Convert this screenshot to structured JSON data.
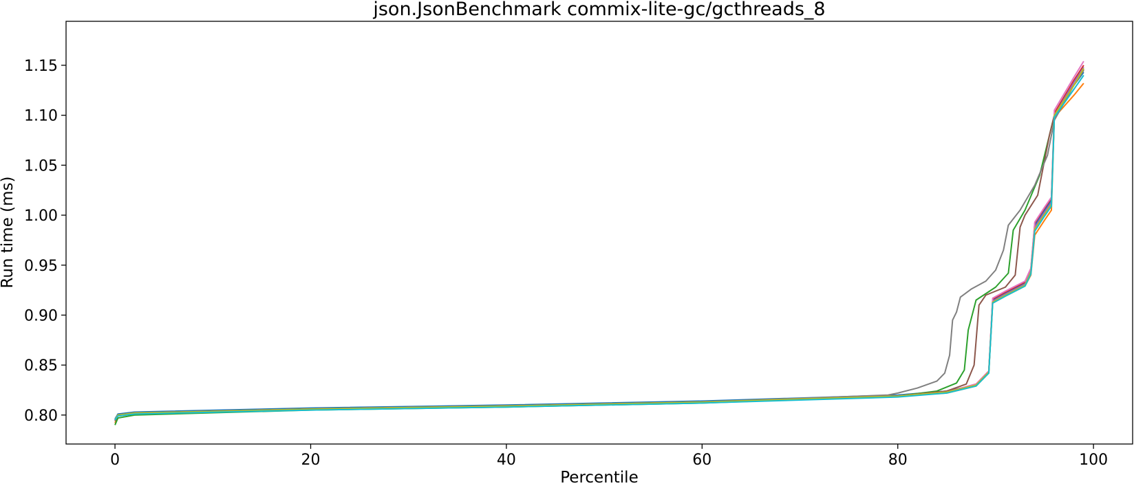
{
  "chart_data": {
    "type": "line",
    "title": "json.JsonBenchmark commix-lite-gc/gcthreads_8",
    "xlabel": "Percentile",
    "ylabel": "Run time (ms)",
    "xlim": [
      -5,
      104
    ],
    "ylim": [
      0.771,
      1.194
    ],
    "xticks": [
      0,
      20,
      40,
      60,
      80,
      100
    ],
    "xtick_labels": [
      "0",
      "20",
      "40",
      "60",
      "80",
      "100"
    ],
    "yticks": [
      0.8,
      0.85,
      0.9,
      0.95,
      1.0,
      1.05,
      1.1,
      1.15
    ],
    "ytick_labels": [
      "0.80",
      "0.85",
      "0.90",
      "0.95",
      "1.00",
      "1.05",
      "1.10",
      "1.15"
    ],
    "grid": false,
    "legend": "none",
    "series": [
      {
        "color": "#1f77b4",
        "points": [
          [
            0,
            0.796
          ],
          [
            0.3,
            0.801
          ],
          [
            2,
            0.803
          ],
          [
            20,
            0.807
          ],
          [
            40,
            0.81
          ],
          [
            60,
            0.814
          ],
          [
            80,
            0.82
          ],
          [
            85,
            0.824
          ],
          [
            88,
            0.83
          ],
          [
            89.3,
            0.843
          ],
          [
            89.7,
            0.915
          ],
          [
            91,
            0.922
          ],
          [
            93,
            0.932
          ],
          [
            93.6,
            0.945
          ],
          [
            94,
            0.99
          ],
          [
            95,
            1.005
          ],
          [
            95.7,
            1.015
          ],
          [
            96,
            1.1
          ],
          [
            98,
            1.13
          ],
          [
            99,
            1.143
          ]
        ]
      },
      {
        "color": "#ff7f0e",
        "points": [
          [
            0,
            0.792
          ],
          [
            0.3,
            0.799
          ],
          [
            2,
            0.801
          ],
          [
            20,
            0.806
          ],
          [
            40,
            0.809
          ],
          [
            60,
            0.813
          ],
          [
            80,
            0.819
          ],
          [
            85,
            0.822
          ],
          [
            88,
            0.829
          ],
          [
            89.3,
            0.842
          ],
          [
            89.7,
            0.912
          ],
          [
            91,
            0.919
          ],
          [
            93,
            0.929
          ],
          [
            93.6,
            0.94
          ],
          [
            94,
            0.98
          ],
          [
            95,
            0.995
          ],
          [
            95.7,
            1.005
          ],
          [
            96,
            1.098
          ],
          [
            98,
            1.12
          ],
          [
            99,
            1.132
          ]
        ]
      },
      {
        "color": "#2ca02c",
        "points": [
          [
            0,
            0.79
          ],
          [
            0.3,
            0.797
          ],
          [
            2,
            0.8
          ],
          [
            20,
            0.805
          ],
          [
            40,
            0.808
          ],
          [
            60,
            0.812
          ],
          [
            80,
            0.819
          ],
          [
            84,
            0.824
          ],
          [
            86,
            0.832
          ],
          [
            86.8,
            0.845
          ],
          [
            87.2,
            0.885
          ],
          [
            88,
            0.915
          ],
          [
            90,
            0.928
          ],
          [
            91.3,
            0.942
          ],
          [
            91.8,
            0.985
          ],
          [
            93,
            1.005
          ],
          [
            94.5,
            1.04
          ],
          [
            95.5,
            1.08
          ],
          [
            96,
            1.1
          ],
          [
            98,
            1.13
          ],
          [
            99,
            1.145
          ]
        ]
      },
      {
        "color": "#d62728",
        "points": [
          [
            0,
            0.795
          ],
          [
            0.3,
            0.8
          ],
          [
            2,
            0.802
          ],
          [
            20,
            0.806
          ],
          [
            40,
            0.809
          ],
          [
            60,
            0.813
          ],
          [
            80,
            0.819
          ],
          [
            85,
            0.823
          ],
          [
            88,
            0.831
          ],
          [
            89.3,
            0.844
          ],
          [
            89.7,
            0.916
          ],
          [
            91,
            0.923
          ],
          [
            93,
            0.933
          ],
          [
            93.6,
            0.946
          ],
          [
            94,
            0.992
          ],
          [
            95,
            1.007
          ],
          [
            95.7,
            1.017
          ],
          [
            96,
            1.102
          ],
          [
            98,
            1.135
          ],
          [
            99,
            1.15
          ]
        ]
      },
      {
        "color": "#9467bd",
        "points": [
          [
            0,
            0.795
          ],
          [
            0.3,
            0.8
          ],
          [
            2,
            0.802
          ],
          [
            20,
            0.806
          ],
          [
            40,
            0.809
          ],
          [
            60,
            0.813
          ],
          [
            80,
            0.819
          ],
          [
            85,
            0.823
          ],
          [
            88,
            0.83
          ],
          [
            89.3,
            0.843
          ],
          [
            89.7,
            0.914
          ],
          [
            91,
            0.921
          ],
          [
            93,
            0.931
          ],
          [
            93.6,
            0.944
          ],
          [
            94,
            0.988
          ],
          [
            95,
            1.003
          ],
          [
            95.7,
            1.013
          ],
          [
            96,
            1.1
          ],
          [
            98,
            1.133
          ],
          [
            99,
            1.148
          ]
        ]
      },
      {
        "color": "#8c564b",
        "points": [
          [
            0,
            0.794
          ],
          [
            0.3,
            0.8
          ],
          [
            2,
            0.802
          ],
          [
            20,
            0.806
          ],
          [
            40,
            0.809
          ],
          [
            60,
            0.813
          ],
          [
            80,
            0.819
          ],
          [
            85,
            0.824
          ],
          [
            87,
            0.831
          ],
          [
            87.8,
            0.85
          ],
          [
            88.3,
            0.91
          ],
          [
            89,
            0.92
          ],
          [
            91,
            0.928
          ],
          [
            92,
            0.94
          ],
          [
            92.5,
            0.988
          ],
          [
            93,
            1.0
          ],
          [
            94.3,
            1.02
          ],
          [
            95.5,
            1.08
          ],
          [
            96,
            1.1
          ],
          [
            98,
            1.13
          ],
          [
            99,
            1.146
          ]
        ]
      },
      {
        "color": "#e377c2",
        "points": [
          [
            0,
            0.795
          ],
          [
            0.3,
            0.8
          ],
          [
            2,
            0.802
          ],
          [
            20,
            0.806
          ],
          [
            40,
            0.809
          ],
          [
            60,
            0.813
          ],
          [
            80,
            0.819
          ],
          [
            85,
            0.823
          ],
          [
            88,
            0.831
          ],
          [
            89.3,
            0.844
          ],
          [
            89.7,
            0.917
          ],
          [
            91,
            0.924
          ],
          [
            93,
            0.934
          ],
          [
            93.6,
            0.947
          ],
          [
            94,
            0.993
          ],
          [
            95,
            1.008
          ],
          [
            95.7,
            1.018
          ],
          [
            96,
            1.105
          ],
          [
            98,
            1.138
          ],
          [
            99,
            1.154
          ]
        ]
      },
      {
        "color": "#7f7f7f",
        "points": [
          [
            0,
            0.795
          ],
          [
            0.3,
            0.8
          ],
          [
            2,
            0.802
          ],
          [
            20,
            0.806
          ],
          [
            40,
            0.809
          ],
          [
            60,
            0.813
          ],
          [
            79,
            0.82
          ],
          [
            80,
            0.822
          ],
          [
            82,
            0.827
          ],
          [
            84,
            0.834
          ],
          [
            84.8,
            0.842
          ],
          [
            85.3,
            0.86
          ],
          [
            85.6,
            0.895
          ],
          [
            86,
            0.903
          ],
          [
            86.4,
            0.918
          ],
          [
            87.5,
            0.926
          ],
          [
            89,
            0.934
          ],
          [
            90,
            0.945
          ],
          [
            90.8,
            0.965
          ],
          [
            91.3,
            0.99
          ],
          [
            92.5,
            1.005
          ],
          [
            94,
            1.03
          ],
          [
            95.3,
            1.06
          ],
          [
            96,
            1.095
          ],
          [
            98,
            1.13
          ],
          [
            99,
            1.145
          ]
        ]
      },
      {
        "color": "#bcbd22",
        "points": [
          [
            0,
            0.795
          ],
          [
            0.3,
            0.8
          ],
          [
            2,
            0.802
          ],
          [
            20,
            0.806
          ],
          [
            40,
            0.809
          ],
          [
            60,
            0.813
          ],
          [
            80,
            0.819
          ],
          [
            85,
            0.823
          ],
          [
            88,
            0.83
          ],
          [
            89.3,
            0.843
          ],
          [
            89.7,
            0.913
          ],
          [
            91,
            0.92
          ],
          [
            93,
            0.93
          ],
          [
            93.6,
            0.943
          ],
          [
            94,
            0.986
          ],
          [
            95,
            1.001
          ],
          [
            95.7,
            1.011
          ],
          [
            96,
            1.1
          ],
          [
            98,
            1.13
          ],
          [
            99,
            1.147
          ]
        ]
      },
      {
        "color": "#17becf",
        "points": [
          [
            0,
            0.795
          ],
          [
            0.3,
            0.799
          ],
          [
            2,
            0.801
          ],
          [
            20,
            0.805
          ],
          [
            40,
            0.808
          ],
          [
            60,
            0.812
          ],
          [
            80,
            0.818
          ],
          [
            85,
            0.822
          ],
          [
            88,
            0.829
          ],
          [
            89.3,
            0.842
          ],
          [
            89.7,
            0.912
          ],
          [
            91,
            0.919
          ],
          [
            93,
            0.929
          ],
          [
            93.6,
            0.941
          ],
          [
            94,
            0.984
          ],
          [
            95,
            0.999
          ],
          [
            95.7,
            1.009
          ],
          [
            96,
            1.098
          ],
          [
            98,
            1.126
          ],
          [
            99,
            1.14
          ]
        ]
      }
    ]
  }
}
